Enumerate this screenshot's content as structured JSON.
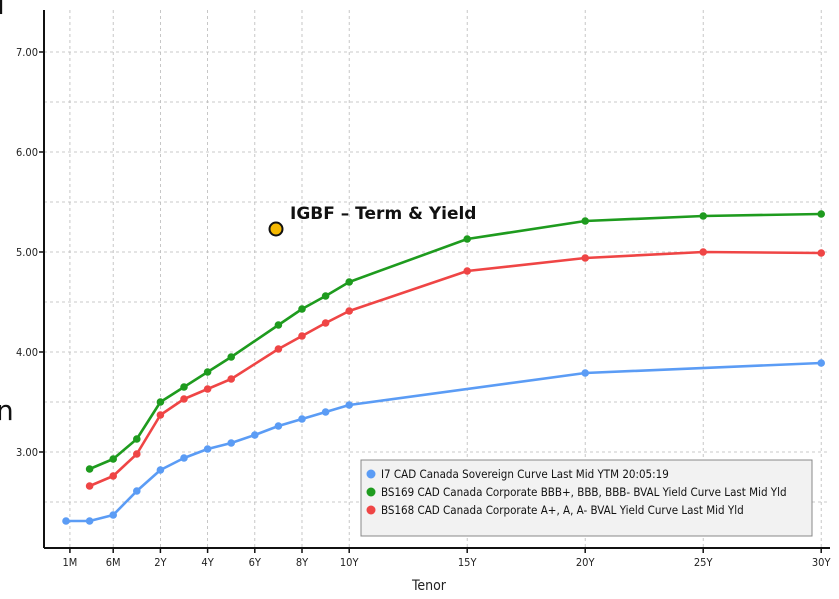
{
  "chart_data": {
    "type": "line",
    "xlabel": "Tenor",
    "ylabel": "",
    "ylim": [
      2.05,
      7.4
    ],
    "y_ticks": [
      {
        "value": 3.0,
        "label": "3.00"
      },
      {
        "value": 4.0,
        "label": "4.00"
      },
      {
        "value": 5.0,
        "label": "5.00"
      },
      {
        "value": 6.0,
        "label": "6.00"
      },
      {
        "value": 7.0,
        "label": "7.00"
      }
    ],
    "x_ticks": [
      {
        "t": 0.083,
        "label": "1M"
      },
      {
        "t": 1.0,
        "label": "6M"
      },
      {
        "t": 2.0,
        "label": "2Y"
      },
      {
        "t": 3.0,
        "label": "4Y"
      },
      {
        "t": 4.0,
        "label": "6Y"
      },
      {
        "t": 5.0,
        "label": "8Y"
      },
      {
        "t": 6.0,
        "label": "10Y"
      },
      {
        "t": 8.5,
        "label": "15Y"
      },
      {
        "t": 11.0,
        "label": "20Y"
      },
      {
        "t": 13.5,
        "label": "25Y"
      },
      {
        "t": 16.0,
        "label": "30Y"
      }
    ],
    "grid": true,
    "legend_position": "bottom-right",
    "annotation": {
      "text": "IGBF – Term & Yield",
      "marker_color": "#f5b800"
    },
    "series": [
      {
        "name": "I7 CAD Canada Sovereign Curve Last Mid YTM 20:05:19",
        "color": "#5b9cf5",
        "points": [
          [
            0.0,
            2.31
          ],
          [
            0.5,
            2.31
          ],
          [
            1.0,
            2.37
          ],
          [
            1.5,
            2.61
          ],
          [
            2.0,
            2.82
          ],
          [
            2.5,
            2.94
          ],
          [
            3.0,
            3.03
          ],
          [
            3.5,
            3.09
          ],
          [
            4.0,
            3.17
          ],
          [
            4.5,
            3.26
          ],
          [
            5.0,
            3.33
          ],
          [
            5.5,
            3.4
          ],
          [
            6.0,
            3.47
          ],
          [
            11.0,
            3.79
          ],
          [
            16.0,
            3.89
          ]
        ]
      },
      {
        "name": "BS169 CAD Canada Corporate BBB+, BBB, BBB- BVAL Yield Curve Last Mid Yld",
        "color": "#1e9b1e",
        "points": [
          [
            0.5,
            2.83
          ],
          [
            1.0,
            2.93
          ],
          [
            1.5,
            3.13
          ],
          [
            2.0,
            3.5
          ],
          [
            2.5,
            3.65
          ],
          [
            3.0,
            3.8
          ],
          [
            3.5,
            3.95
          ],
          [
            4.5,
            4.27
          ],
          [
            5.0,
            4.43
          ],
          [
            5.5,
            4.56
          ],
          [
            6.0,
            4.7
          ],
          [
            8.5,
            5.13
          ],
          [
            11.0,
            5.31
          ],
          [
            13.5,
            5.36
          ],
          [
            16.0,
            5.38
          ]
        ]
      },
      {
        "name": "BS168 CAD Canada Corporate A+, A, A- BVAL Yield Curve Last Mid Yld",
        "color": "#ef4545",
        "points": [
          [
            0.5,
            2.66
          ],
          [
            1.0,
            2.76
          ],
          [
            1.5,
            2.98
          ],
          [
            2.0,
            3.37
          ],
          [
            2.5,
            3.53
          ],
          [
            3.0,
            3.63
          ],
          [
            3.5,
            3.73
          ],
          [
            4.5,
            4.03
          ],
          [
            5.0,
            4.16
          ],
          [
            5.5,
            4.29
          ],
          [
            6.0,
            4.41
          ],
          [
            8.5,
            4.81
          ],
          [
            11.0,
            4.94
          ],
          [
            13.5,
            5.0
          ],
          [
            16.0,
            4.99
          ]
        ]
      }
    ]
  },
  "edge_glyphs": {
    "top": "l",
    "middle": "n"
  }
}
